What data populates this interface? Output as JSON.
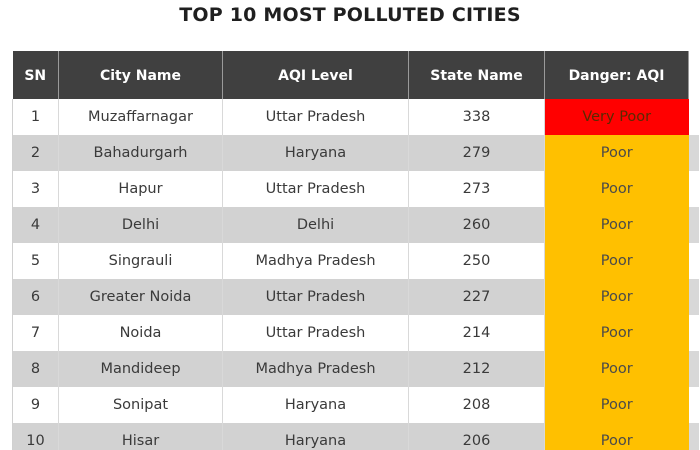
{
  "title": "TOP 10 MOST POLLUTED CITIES",
  "headers": [
    "SN",
    "City Name",
    "AQI Level",
    "State Name",
    "Danger: AQI"
  ],
  "rows": [
    {
      "sn": "1",
      "city": "Muzaffarnagar",
      "state": "Uttar Pradesh",
      "aqi": "338",
      "danger": "Very Poor",
      "level": "very-poor"
    },
    {
      "sn": "2",
      "city": "Bahadurgarh",
      "state": "Haryana",
      "aqi": "279",
      "danger": "Poor",
      "level": "poor"
    },
    {
      "sn": "3",
      "city": "Hapur",
      "state": "Uttar Pradesh",
      "aqi": "273",
      "danger": "Poor",
      "level": "poor"
    },
    {
      "sn": "4",
      "city": "Delhi",
      "state": "Delhi",
      "aqi": "260",
      "danger": "Poor",
      "level": "poor"
    },
    {
      "sn": "5",
      "city": "Singrauli",
      "state": "Madhya Pradesh",
      "aqi": "250",
      "danger": "Poor",
      "level": "poor"
    },
    {
      "sn": "6",
      "city": "Greater Noida",
      "state": "Uttar Pradesh",
      "aqi": "227",
      "danger": "Poor",
      "level": "poor"
    },
    {
      "sn": "7",
      "city": "Noida",
      "state": "Uttar Pradesh",
      "aqi": "214",
      "danger": "Poor",
      "level": "poor"
    },
    {
      "sn": "8",
      "city": "Mandideep",
      "state": "Madhya Pradesh",
      "aqi": "212",
      "danger": "Poor",
      "level": "poor"
    },
    {
      "sn": "9",
      "city": "Sonipat",
      "state": "Haryana",
      "aqi": "208",
      "danger": "Poor",
      "level": "poor"
    },
    {
      "sn": "10",
      "city": "Hisar",
      "state": "Haryana",
      "aqi": "206",
      "danger": "Poor",
      "level": "poor"
    }
  ],
  "colors": {
    "header_bg": "#404040",
    "very_poor": "#ff0000",
    "poor": "#ffc000",
    "stripe": "#d2d2d2"
  }
}
